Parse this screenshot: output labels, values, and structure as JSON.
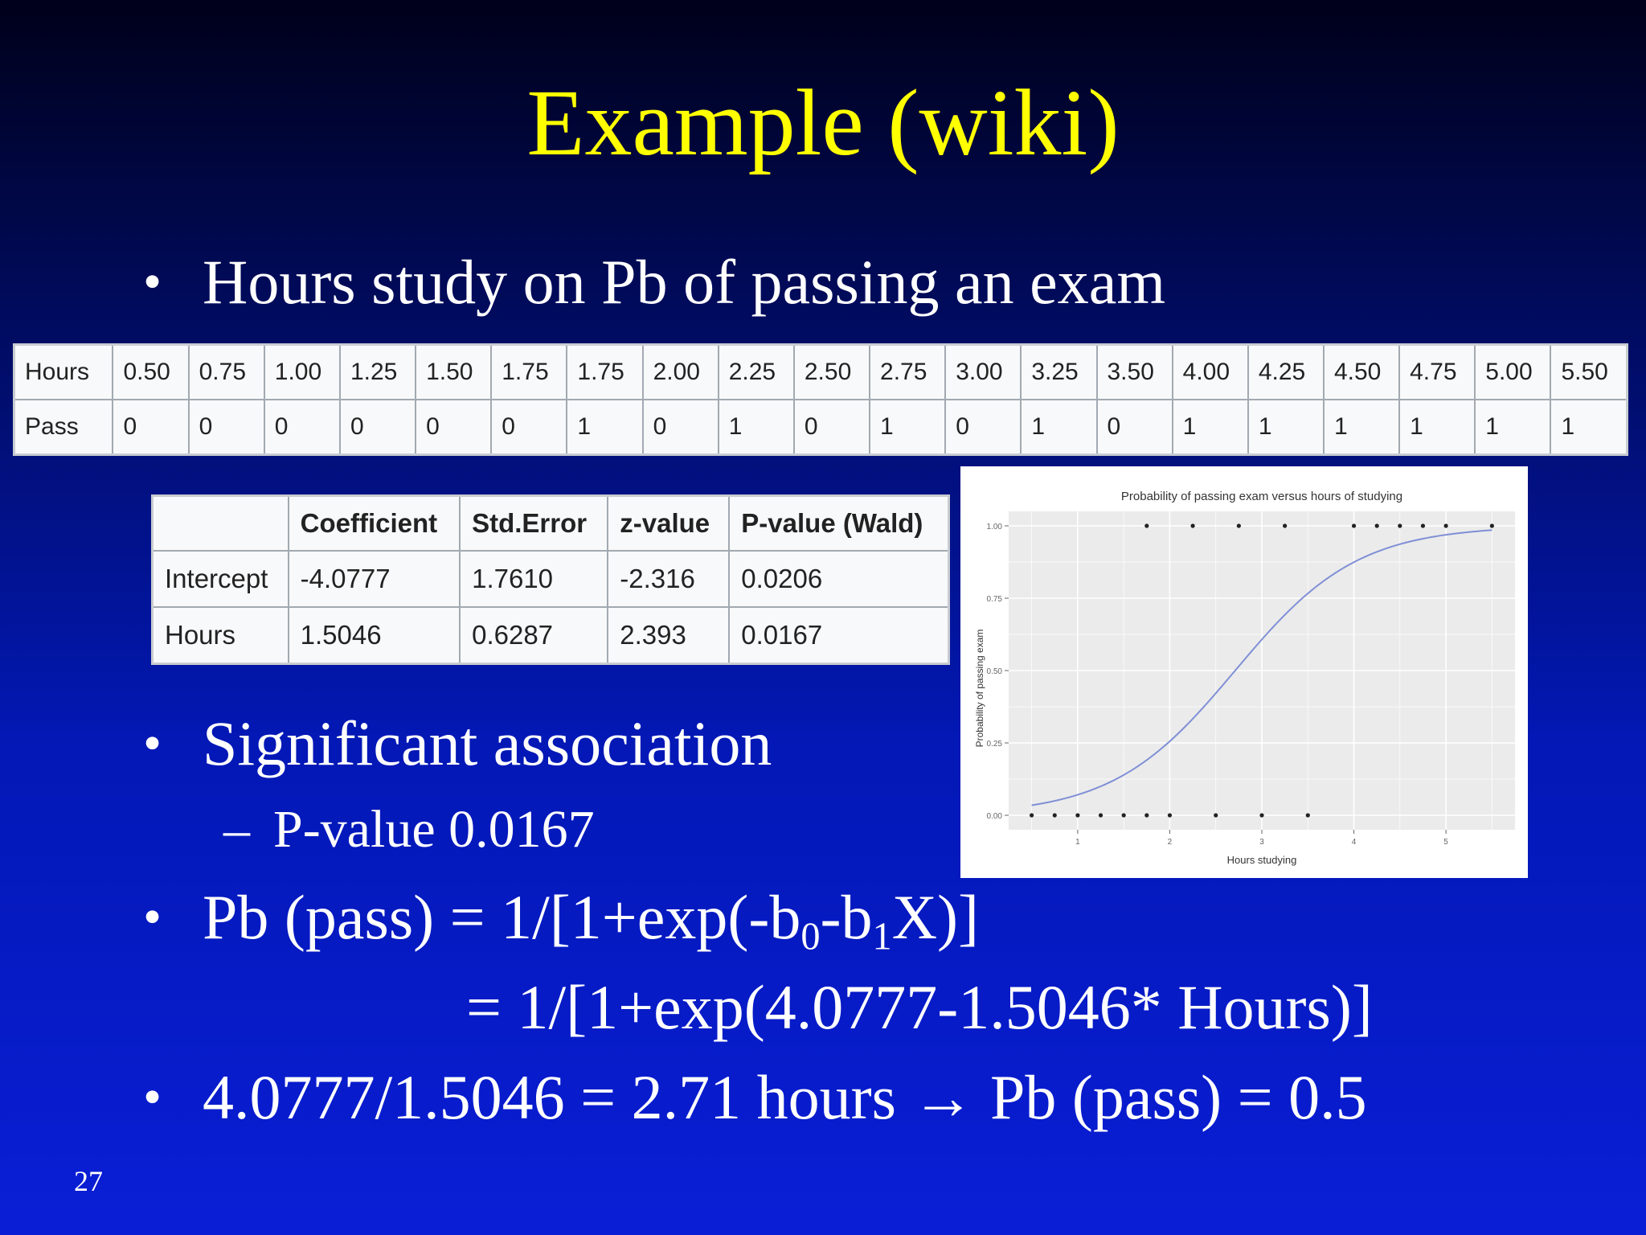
{
  "slide": {
    "title": "Example (wiki)",
    "bullet1": "Hours study on Pb of passing an exam",
    "bullet2": "Significant association",
    "sub1": "P-value 0.0167",
    "bullet3": {
      "pre": "Pb (pass) = 1/[1+exp(-b",
      "sub0": "0",
      "mid": "-b",
      "sub1": "1",
      "post": "X)]"
    },
    "bullet3_cont": "= 1/[1+exp(4.0777-1.5046* Hours)]",
    "bullet4": "4.0777/1.5046 = 2.71 hours → Pb (pass) = 0.5",
    "bullet_glyph": "•",
    "dash_glyph": "–",
    "page_number": "27"
  },
  "data_table": {
    "row_labels": [
      "Hours",
      "Pass"
    ],
    "hours": [
      "0.50",
      "0.75",
      "1.00",
      "1.25",
      "1.50",
      "1.75",
      "1.75",
      "2.00",
      "2.25",
      "2.50",
      "2.75",
      "3.00",
      "3.25",
      "3.50",
      "4.00",
      "4.25",
      "4.50",
      "4.75",
      "5.00",
      "5.50"
    ],
    "pass": [
      "0",
      "0",
      "0",
      "0",
      "0",
      "0",
      "1",
      "0",
      "1",
      "0",
      "1",
      "0",
      "1",
      "0",
      "1",
      "1",
      "1",
      "1",
      "1",
      "1"
    ]
  },
  "coef_table": {
    "headers": [
      "",
      "Coefficient",
      "Std.Error",
      "z-value",
      "P-value (Wald)"
    ],
    "rows": [
      [
        "Intercept",
        "-4.0777",
        "1.7610",
        "-2.316",
        "0.0206"
      ],
      [
        "Hours",
        "1.5046",
        "0.6287",
        "2.393",
        "0.0167"
      ]
    ]
  },
  "chart_data": {
    "type": "scatter",
    "title": "Probability of passing exam versus hours of studying",
    "xlabel": "Hours studying",
    "ylabel": "Probability of passing exam",
    "xlim": [
      0.25,
      5.75
    ],
    "ylim": [
      -0.05,
      1.05
    ],
    "x_ticks": [
      1,
      2,
      3,
      4,
      5
    ],
    "y_ticks": [
      0.0,
      0.25,
      0.5,
      0.75,
      1.0
    ],
    "y_tick_labels": [
      "0.00",
      "0.25",
      "0.50",
      "0.75",
      "1.00"
    ],
    "grid": true,
    "points": {
      "x": [
        0.5,
        0.75,
        1.0,
        1.25,
        1.5,
        1.75,
        1.75,
        2.0,
        2.25,
        2.5,
        2.75,
        3.0,
        3.25,
        3.5,
        4.0,
        4.25,
        4.5,
        4.75,
        5.0,
        5.5
      ],
      "y": [
        0,
        0,
        0,
        0,
        0,
        0,
        1,
        0,
        1,
        0,
        1,
        0,
        1,
        0,
        1,
        1,
        1,
        1,
        1,
        1
      ]
    },
    "fit": {
      "type": "logistic",
      "intercept": -4.0777,
      "slope": 1.5046
    },
    "colors": {
      "curve": "#7f8fd6",
      "points": "#222222",
      "panel": "#ebebeb",
      "grid": "#ffffff"
    }
  }
}
